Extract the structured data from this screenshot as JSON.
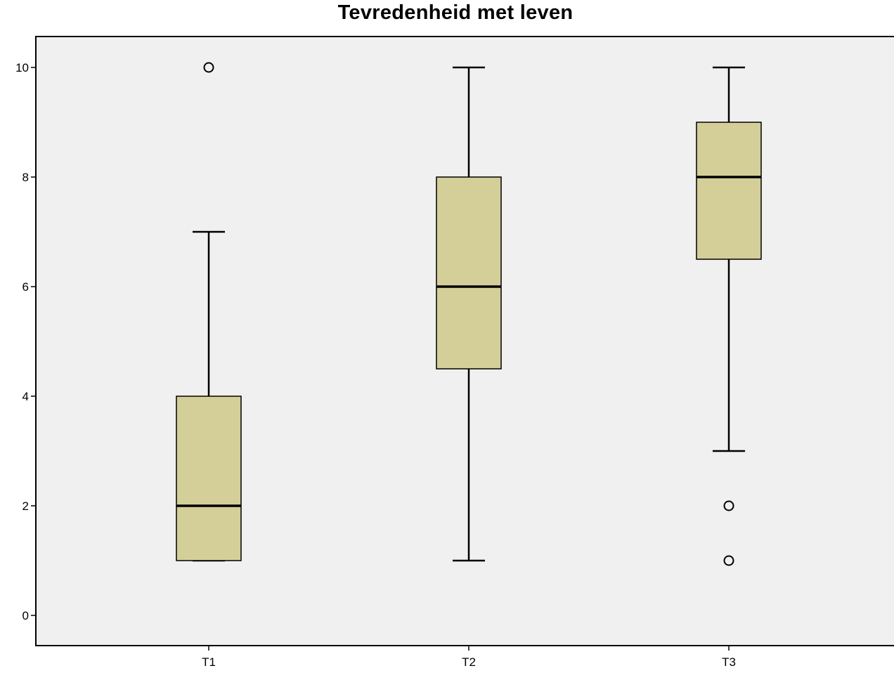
{
  "chart_data": {
    "type": "boxplot",
    "title": "Tevredenheid met leven",
    "xlabel": "",
    "ylabel": "",
    "ylim": [
      -0.55,
      10.55
    ],
    "yticks": [
      0,
      2,
      4,
      6,
      8,
      10
    ],
    "grid": false,
    "categories": [
      "T1",
      "T2",
      "T3"
    ],
    "boxes": [
      {
        "category": "T1",
        "whisker_low": 1,
        "q1": 1,
        "median": 2,
        "q3": 4,
        "whisker_high": 7,
        "outliers": [
          10
        ]
      },
      {
        "category": "T2",
        "whisker_low": 1,
        "q1": 4.5,
        "median": 6,
        "q3": 8,
        "whisker_high": 10,
        "outliers": []
      },
      {
        "category": "T3",
        "whisker_low": 3,
        "q1": 6.5,
        "median": 8,
        "q3": 9,
        "whisker_high": 10,
        "outliers": [
          2,
          1
        ]
      }
    ],
    "colors": {
      "box_fill": "#d4cf98",
      "plot_background": "#f0f0f0",
      "lines": "#000000"
    }
  }
}
